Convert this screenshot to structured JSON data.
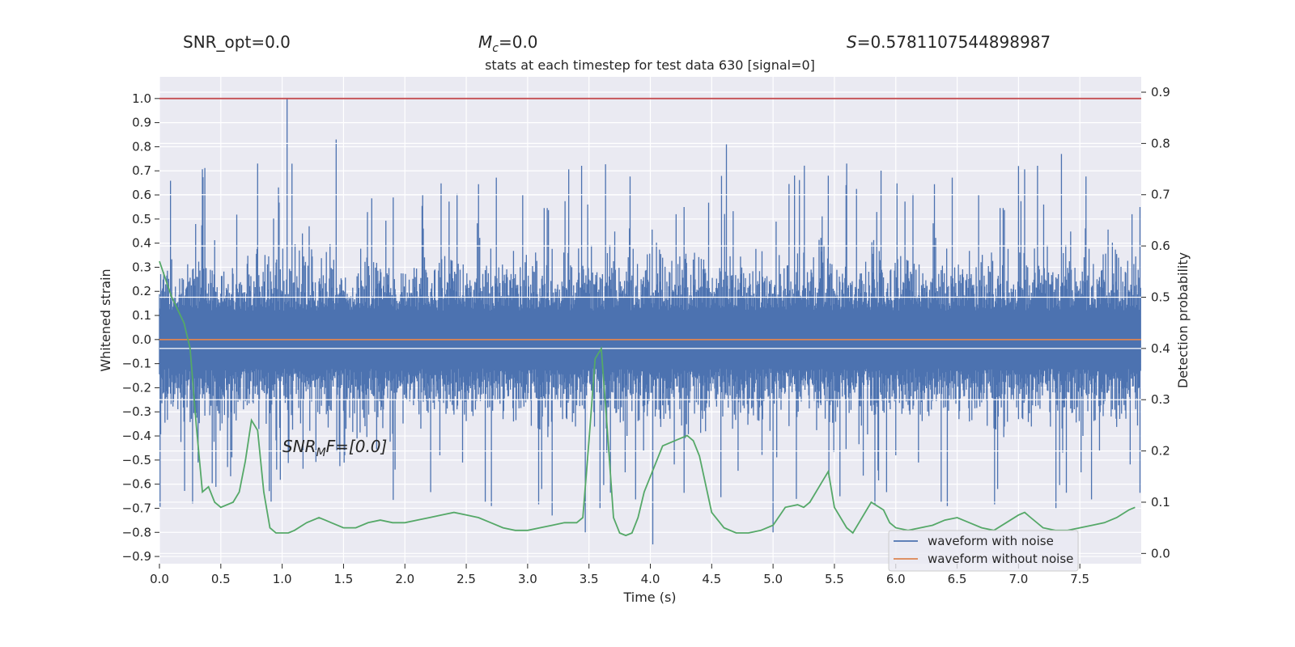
{
  "chart_data": {
    "type": "line",
    "title": "stats at each timestep for test data 630 [signal=0]",
    "header": {
      "snr_opt": "SNR_opt=0.0",
      "mc_symbol": "M",
      "mc_sub": "c",
      "mc_value": "=0.0",
      "s_symbol": "S",
      "s_value": "=0.5781107544898987"
    },
    "annotation": {
      "base": "SNR",
      "sub": "M",
      "rest": "F=[0.0]"
    },
    "xlabel": "Time (s)",
    "ylabel": "Whitened strain",
    "ylabel_right": "Detection probability",
    "xlim": [
      0,
      8
    ],
    "ylim": [
      -0.93,
      1.09
    ],
    "ylim_right": [
      -0.02,
      0.93
    ],
    "x_ticks": [
      0.0,
      0.5,
      1.0,
      1.5,
      2.0,
      2.5,
      3.0,
      3.5,
      4.0,
      4.5,
      5.0,
      5.5,
      6.0,
      6.5,
      7.0,
      7.5
    ],
    "x_tick_labels": [
      "0.0",
      "0.5",
      "1.0",
      "1.5",
      "2.0",
      "2.5",
      "3.0",
      "3.5",
      "4.0",
      "4.5",
      "5.0",
      "5.5",
      "6.0",
      "6.5",
      "7.0",
      "7.5"
    ],
    "y_ticks": [
      1.0,
      0.9,
      0.8,
      0.7,
      0.6,
      0.5,
      0.4,
      0.3,
      0.2,
      0.1,
      0.0,
      -0.1,
      -0.2,
      -0.3,
      -0.4,
      -0.5,
      -0.6,
      -0.7,
      -0.8,
      -0.9
    ],
    "y_tick_labels": [
      "1.0",
      "0.9",
      "0.8",
      "0.7",
      "0.6",
      "0.5",
      "0.4",
      "0.3",
      "0.2",
      "0.1",
      "0.0",
      "−0.1",
      "−0.2",
      "−0.3",
      "−0.4",
      "−0.5",
      "−0.6",
      "−0.7",
      "−0.8",
      "−0.9"
    ],
    "y_right_ticks": [
      0.9,
      0.8,
      0.7,
      0.6,
      0.5,
      0.4,
      0.3,
      0.2,
      0.1,
      0.0
    ],
    "y_right_tick_labels": [
      "0.9",
      "0.8",
      "0.7",
      "0.6",
      "0.5",
      "0.4",
      "0.3",
      "0.2",
      "0.1",
      "0.0"
    ],
    "threshold": 1.0,
    "series": [
      {
        "name": "waveform with noise",
        "color": "#4c72b0",
        "envelope": "dense noise, |strain| mostly within 0.45, peaks up to 1.0 near t=1.04 s"
      },
      {
        "name": "waveform without noise",
        "color": "#dd8452",
        "values_constant": 0.0
      },
      {
        "color": "#55a868",
        "x": [
          0.0,
          0.1,
          0.2,
          0.25,
          0.3,
          0.35,
          0.4,
          0.45,
          0.5,
          0.6,
          0.65,
          0.7,
          0.75,
          0.8,
          0.85,
          0.9,
          0.95,
          1.0,
          1.05,
          1.1,
          1.2,
          1.3,
          1.35,
          1.4,
          1.5,
          1.6,
          1.7,
          1.8,
          1.9,
          2.0,
          2.1,
          2.2,
          2.3,
          2.4,
          2.5,
          2.6,
          2.7,
          2.8,
          2.9,
          3.0,
          3.1,
          3.2,
          3.3,
          3.4,
          3.45,
          3.5,
          3.55,
          3.6,
          3.65,
          3.7,
          3.75,
          3.8,
          3.85,
          3.9,
          3.95,
          4.0,
          4.1,
          4.2,
          4.3,
          4.35,
          4.4,
          4.5,
          4.6,
          4.7,
          4.8,
          4.9,
          5.0,
          5.1,
          5.2,
          5.25,
          5.3,
          5.4,
          5.45,
          5.5,
          5.6,
          5.65,
          5.7,
          5.8,
          5.9,
          5.95,
          6.0,
          6.1,
          6.2,
          6.3,
          6.4,
          6.5,
          6.6,
          6.7,
          6.8,
          6.9,
          7.0,
          7.05,
          7.1,
          7.2,
          7.3,
          7.4,
          7.5,
          7.6,
          7.7,
          7.8,
          7.9,
          7.95
        ],
        "values": [
          0.57,
          0.5,
          0.45,
          0.4,
          0.25,
          0.12,
          0.13,
          0.1,
          0.09,
          0.1,
          0.12,
          0.18,
          0.26,
          0.24,
          0.12,
          0.05,
          0.04,
          0.04,
          0.04,
          0.045,
          0.06,
          0.07,
          0.065,
          0.06,
          0.05,
          0.05,
          0.06,
          0.065,
          0.06,
          0.06,
          0.065,
          0.07,
          0.075,
          0.08,
          0.075,
          0.07,
          0.06,
          0.05,
          0.045,
          0.045,
          0.05,
          0.055,
          0.06,
          0.06,
          0.07,
          0.22,
          0.38,
          0.4,
          0.24,
          0.07,
          0.04,
          0.035,
          0.04,
          0.07,
          0.12,
          0.15,
          0.21,
          0.22,
          0.23,
          0.22,
          0.19,
          0.08,
          0.05,
          0.04,
          0.04,
          0.045,
          0.055,
          0.09,
          0.095,
          0.09,
          0.1,
          0.14,
          0.16,
          0.09,
          0.05,
          0.04,
          0.06,
          0.1,
          0.085,
          0.06,
          0.05,
          0.045,
          0.05,
          0.055,
          0.065,
          0.07,
          0.06,
          0.05,
          0.045,
          0.06,
          0.075,
          0.08,
          0.07,
          0.05,
          0.045,
          0.045,
          0.05,
          0.055,
          0.06,
          0.07,
          0.085,
          0.09
        ]
      }
    ],
    "legend": {
      "position": "lower right",
      "entries": [
        "waveform with noise",
        "waveform without noise"
      ]
    },
    "grid": true,
    "style": {
      "face": "#eaeaf2",
      "grid": "#ffffff",
      "threshold_color": "#c44e52"
    }
  }
}
